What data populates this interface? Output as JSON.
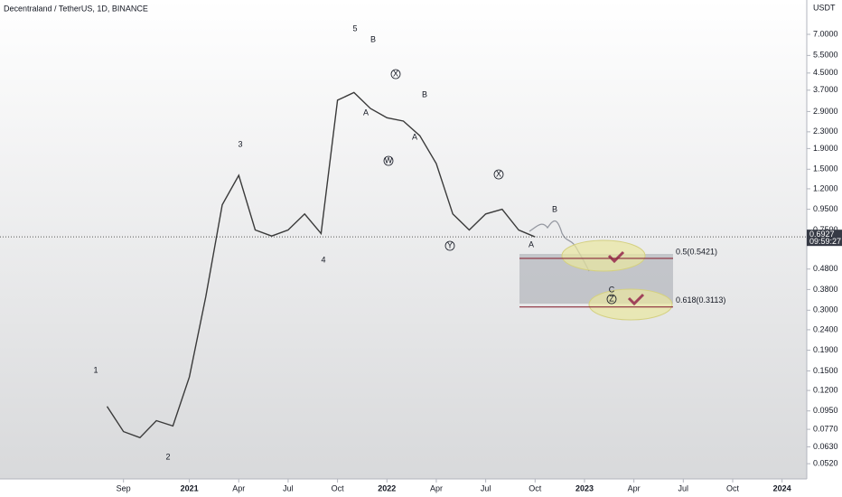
{
  "chart_data": {
    "type": "line",
    "title": "Decentraland / TetherUS, 1D, BINANCE",
    "y_axis_unit": "USDT",
    "x": [
      "2020-08",
      "2020-09",
      "2020-10",
      "2020-11",
      "2020-12",
      "2021-01",
      "2021-02",
      "2021-03",
      "2021-04",
      "2021-05",
      "2021-06",
      "2021-07",
      "2021-08",
      "2021-09",
      "2021-10",
      "2021-11",
      "2021-12",
      "2022-01",
      "2022-02",
      "2022-03",
      "2022-04",
      "2022-05",
      "2022-06",
      "2022-07",
      "2022-08",
      "2022-09",
      "2022-10"
    ],
    "series": [
      {
        "color": "#3a3a3a",
        "values": [
          0.1,
          0.075,
          0.07,
          0.085,
          0.08,
          0.14,
          0.35,
          1.0,
          1.4,
          0.75,
          0.7,
          0.75,
          0.9,
          0.72,
          3.3,
          3.6,
          3.0,
          2.7,
          2.6,
          2.2,
          1.6,
          0.9,
          0.75,
          0.9,
          0.95,
          0.75,
          0.6927
        ]
      }
    ],
    "xlim": [
      "2020-02",
      "2024-03"
    ],
    "xticks": [
      {
        "value": "2020-09",
        "label": "Sep"
      },
      {
        "value": "2021-01",
        "label": "2021"
      },
      {
        "value": "2021-04",
        "label": "Apr"
      },
      {
        "value": "2021-07",
        "label": "Jul"
      },
      {
        "value": "2021-10",
        "label": "Oct"
      },
      {
        "value": "2022-01",
        "label": "2022"
      },
      {
        "value": "2022-04",
        "label": "Apr"
      },
      {
        "value": "2022-07",
        "label": "Jul"
      },
      {
        "value": "2022-10",
        "label": "Oct"
      },
      {
        "value": "2023-01",
        "label": "2023"
      },
      {
        "value": "2023-04",
        "label": "Apr"
      },
      {
        "value": "2023-07",
        "label": "Jul"
      },
      {
        "value": "2023-10",
        "label": "Oct"
      },
      {
        "value": "2024-01",
        "label": "2024"
      }
    ],
    "log_scale": true,
    "ylim": [
      0.0437,
      10.36
    ],
    "yticks": [
      {
        "value": 7,
        "label": "7.0000"
      },
      {
        "value": 5.5,
        "label": "5.5000"
      },
      {
        "value": 4.5,
        "label": "4.5000"
      },
      {
        "value": 3.7,
        "label": "3.7000"
      },
      {
        "value": 2.9,
        "label": "2.9000"
      },
      {
        "value": 2.3,
        "label": "2.3000"
      },
      {
        "value": 1.9,
        "label": "1.9000"
      },
      {
        "value": 1.5,
        "label": "1.5000"
      },
      {
        "value": 1.2,
        "label": "1.2000"
      },
      {
        "value": 0.95,
        "label": "0.9500"
      },
      {
        "value": 0.75,
        "label": "0.7500"
      },
      {
        "value": 0.48,
        "label": "0.4800"
      },
      {
        "value": 0.38,
        "label": "0.3800"
      },
      {
        "value": 0.3,
        "label": "0.3000"
      },
      {
        "value": 0.24,
        "label": "0.2400"
      },
      {
        "value": 0.19,
        "label": "0.1900"
      },
      {
        "value": 0.15,
        "label": "0.1500"
      },
      {
        "value": 0.12,
        "label": "0.1200"
      },
      {
        "value": 0.095,
        "label": "0.0950"
      },
      {
        "value": 0.077,
        "label": "0.0770"
      },
      {
        "value": 0.063,
        "label": "0.0630"
      },
      {
        "value": 0.052,
        "label": "0.0520"
      }
    ],
    "last_price": {
      "value": 0.6927,
      "label": "0.6927",
      "countdown": "09:59:27"
    },
    "fib_levels": [
      {
        "label": "0.5(0.5421)",
        "value": 0.5421
      },
      {
        "label": "0.618(0.3113)",
        "value": 0.3113
      }
    ],
    "annotations": [
      "1",
      "2",
      "3",
      "4",
      "5",
      "A",
      "B",
      "X",
      "W",
      "B",
      "A",
      "X",
      "Y",
      "A",
      "B",
      "C",
      "Z"
    ]
  }
}
